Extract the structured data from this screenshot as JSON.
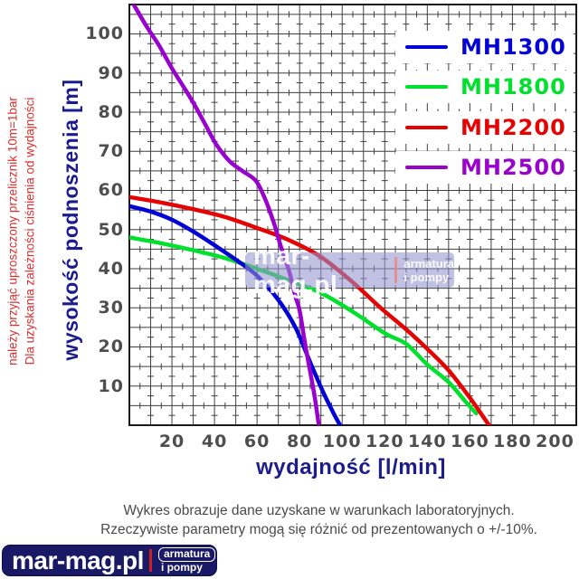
{
  "side_note": {
    "line1": "Dla uzyskania zależności ciśnienia od wydajności",
    "line2": "należy przyjąć uproszczony przelicznik 10m=1bar"
  },
  "footer_note": {
    "line1": "Wykres obrazuje dane uzyskane w warunkach laboratoryjnych.",
    "line2": "Rzeczywiste parametry mogą się różnić od prezentowanych o +/-10%."
  },
  "watermark": {
    "main": "mar-mag.pl",
    "sub1": "armatura",
    "sub2": "i pompy"
  },
  "logo": {
    "main": "mar-mag.pl",
    "sub1": "armatura",
    "sub2": "i pompy"
  },
  "colors": {
    "grid": "#3f3f3f",
    "frame": "#1a1a1a",
    "axis_title": "#1c1c8c",
    "tick_text": "#4e4e4e",
    "side_note": "#d93030",
    "blue": "#0202d6",
    "green": "#02e02e",
    "red": "#e40202",
    "purple": "#9902cc"
  },
  "chart_data": {
    "type": "line",
    "title": "",
    "xlabel": "wydajność [l/min]",
    "ylabel": "wysokość podnoszenia [m]",
    "x_unit": "l/min",
    "y_unit": "m",
    "xlim": [
      0,
      210
    ],
    "ylim": [
      0,
      107.5
    ],
    "x_ticks": [
      20,
      40,
      60,
      80,
      100,
      120,
      140,
      160,
      180,
      200
    ],
    "y_ticks": [
      10,
      20,
      30,
      40,
      50,
      60,
      70,
      80,
      90,
      100
    ],
    "grid": {
      "x_major_step": 10,
      "y_major_step": 5,
      "minor_cross_ticks": true
    },
    "legend_position": "top-right",
    "series": [
      {
        "name": "MH1300",
        "color": "#0202d6",
        "points": [
          [
            0,
            56
          ],
          [
            10,
            54.6
          ],
          [
            20,
            52.5
          ],
          [
            30,
            49.5
          ],
          [
            40,
            46
          ],
          [
            50,
            42.3
          ],
          [
            60,
            38.2
          ],
          [
            70,
            32
          ],
          [
            78,
            25
          ],
          [
            85,
            16
          ],
          [
            91,
            8.5
          ],
          [
            96,
            3
          ],
          [
            99,
            0
          ]
        ]
      },
      {
        "name": "MH1800",
        "color": "#02e02e",
        "points": [
          [
            0,
            48
          ],
          [
            15,
            46.5
          ],
          [
            30,
            44.7
          ],
          [
            45,
            42.7
          ],
          [
            60,
            40
          ],
          [
            75,
            37
          ],
          [
            90,
            33.8
          ],
          [
            105,
            29
          ],
          [
            120,
            23.5
          ],
          [
            130,
            20.8
          ],
          [
            140,
            15.5
          ],
          [
            150,
            11
          ],
          [
            158,
            6
          ],
          [
            163,
            3
          ]
        ]
      },
      {
        "name": "MH2200",
        "color": "#e40202",
        "points": [
          [
            0,
            58.3
          ],
          [
            15,
            56.9
          ],
          [
            30,
            55.2
          ],
          [
            45,
            53.2
          ],
          [
            60,
            50.4
          ],
          [
            75,
            47.3
          ],
          [
            90,
            43
          ],
          [
            105,
            36.5
          ],
          [
            118,
            30
          ],
          [
            130,
            24.5
          ],
          [
            140,
            19.5
          ],
          [
            150,
            14
          ],
          [
            160,
            7
          ],
          [
            169,
            0
          ]
        ]
      },
      {
        "name": "MH2500",
        "color": "#9902cc",
        "points": [
          [
            2,
            107.5
          ],
          [
            8,
            102
          ],
          [
            14,
            97
          ],
          [
            20,
            91.2
          ],
          [
            26,
            86
          ],
          [
            31,
            81.5
          ],
          [
            36,
            76.5
          ],
          [
            41,
            71.6
          ],
          [
            47,
            67.5
          ],
          [
            53,
            65
          ],
          [
            59.5,
            62.4
          ],
          [
            64,
            57.5
          ],
          [
            68,
            51.5
          ],
          [
            71,
            46
          ],
          [
            75,
            39.5
          ],
          [
            78,
            33
          ],
          [
            80,
            29.3
          ],
          [
            82.5,
            21
          ],
          [
            85,
            13.5
          ],
          [
            87,
            7.5
          ],
          [
            89,
            0
          ]
        ]
      }
    ]
  }
}
